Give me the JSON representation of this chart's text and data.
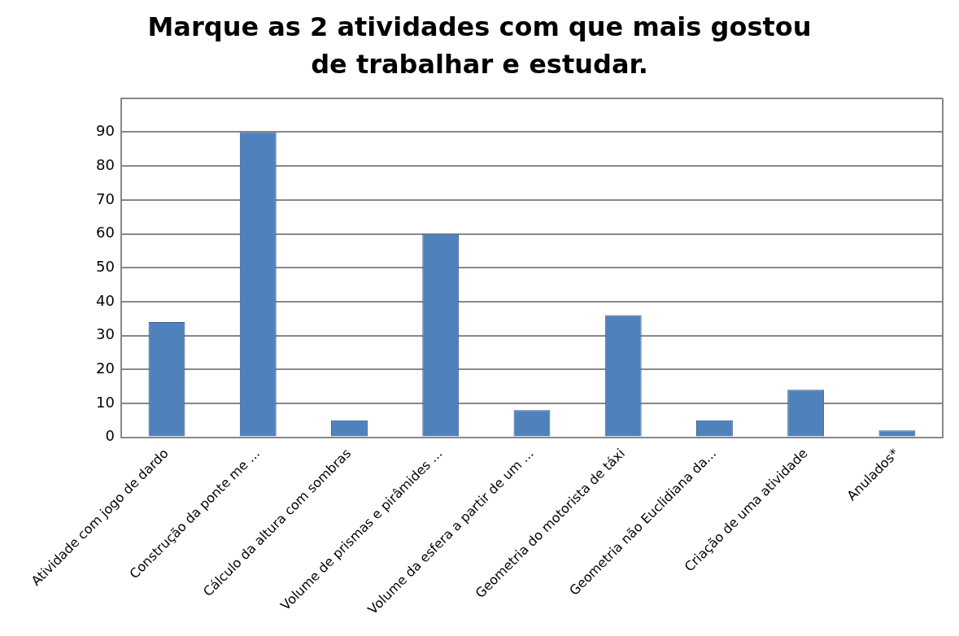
{
  "chart_data": {
    "type": "bar",
    "title": "Marque as 2 atividades com que mais gostou de trabalhar e estudar.",
    "categories": [
      "Atividade com jogo de dardo",
      "Construção da ponte me ...",
      "Cálculo da altura com sombras",
      "Volume de prismas e pirâmides ...",
      "Volume da esfera a partir de um ...",
      "Geometria do motorista de táxi",
      "Geometria não Euclidiana da...",
      "Criação de uma atividade",
      "Anulados*"
    ],
    "values": [
      34,
      90,
      5,
      60,
      8,
      36,
      5,
      14,
      2
    ],
    "color": "#4f81bd",
    "ylim": [
      0,
      100
    ],
    "yticks": [
      0,
      10,
      20,
      30,
      40,
      50,
      60,
      70,
      80,
      90,
      {
        "value": 100,
        "label": null
      }
    ],
    "grid": "y"
  }
}
